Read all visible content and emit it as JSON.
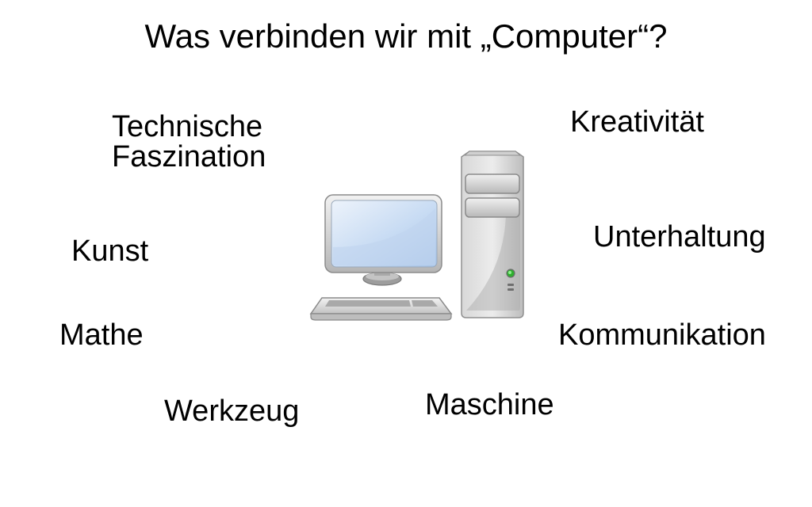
{
  "slide": {
    "title": "Was verbinden wir mit „Computer“?",
    "terms": {
      "technische_line1": "Technische",
      "technische_line2": "Faszination",
      "kunst": "Kunst",
      "mathe": "Mathe",
      "werkzeug": "Werkzeug",
      "maschine": "Maschine",
      "kreativitaet": "Kreativität",
      "unterhaltung": "Unterhaltung",
      "kommunikation": "Kommunikation"
    },
    "illustration": {
      "icon": "desktop-computer-icon",
      "colors": {
        "case_light": "#e6e6e6",
        "case_dark": "#9a9a9a",
        "screen_light": "#e3edf9",
        "screen_dark": "#a9c6ea",
        "power_led": "#3cc43c"
      }
    }
  }
}
